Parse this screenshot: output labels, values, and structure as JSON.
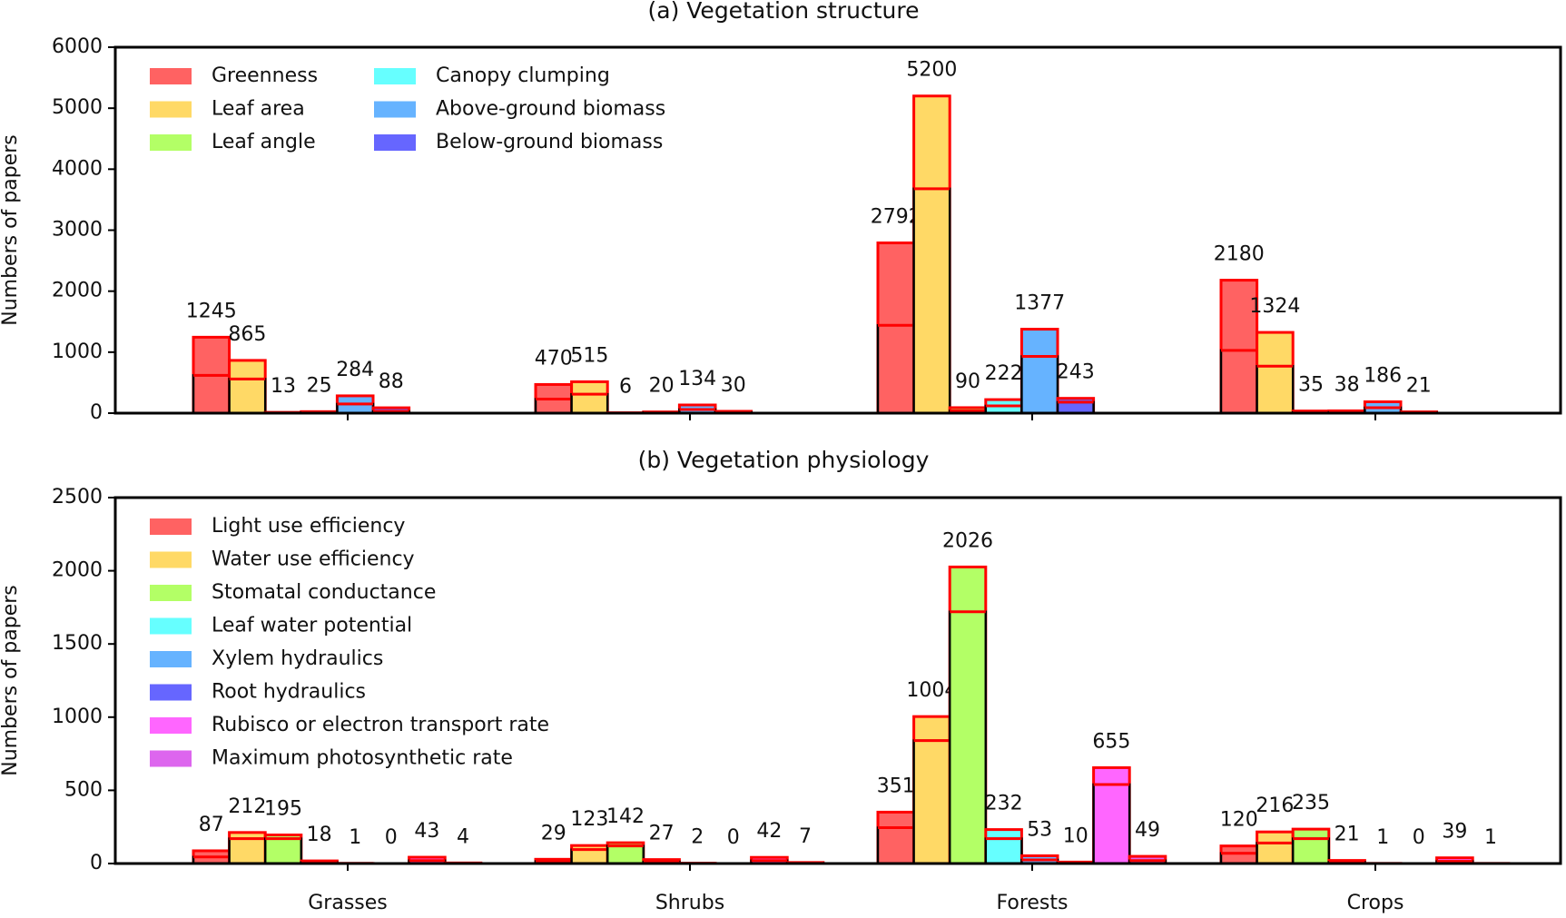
{
  "chart_data": [
    {
      "type": "bar",
      "title": "(a) Vegetation structure",
      "ylabel": "Numbers of papers",
      "ylim": [
        0,
        6000
      ],
      "yticks": [
        0,
        1000,
        2000,
        3000,
        4000,
        5000,
        6000
      ],
      "legend": "upper left",
      "series": [
        {
          "name": "Greenness",
          "color": "#ff6262",
          "values": [
            1245,
            470,
            2792,
            2180
          ],
          "inner_values": [
            620,
            230,
            1440,
            1030
          ]
        },
        {
          "name": "Leaf area",
          "color": "#ffd966",
          "values": [
            865,
            515,
            5200,
            1324
          ],
          "inner_values": [
            560,
            310,
            3680,
            770
          ]
        },
        {
          "name": "Leaf angle",
          "color": "#b3ff66",
          "values": [
            13,
            6,
            90,
            35
          ],
          "inner_values": [
            6,
            3,
            40,
            15
          ]
        },
        {
          "name": "Canopy clumping",
          "color": "#66ffff",
          "values": [
            25,
            20,
            222,
            38
          ],
          "inner_values": [
            10,
            10,
            120,
            15
          ]
        },
        {
          "name": "Above-ground biomass",
          "color": "#66b3ff",
          "values": [
            284,
            134,
            1377,
            186
          ],
          "inner_values": [
            150,
            60,
            930,
            90
          ]
        },
        {
          "name": "Below-ground biomass",
          "color": "#6666ff",
          "values": [
            88,
            30,
            243,
            21
          ],
          "inner_values": [
            30,
            15,
            180,
            10
          ]
        }
      ]
    },
    {
      "type": "bar",
      "title": "(b) Vegetation physiology",
      "ylabel": "Numbers of papers",
      "categories": [
        "Grasses",
        "Shrubs",
        "Forests",
        "Crops"
      ],
      "ylim": [
        0,
        2500
      ],
      "yticks": [
        0,
        500,
        1000,
        1500,
        2000,
        2500
      ],
      "legend": "upper left",
      "series": [
        {
          "name": "Light use efficiency",
          "color": "#ff6262",
          "values": [
            87,
            29,
            351,
            120
          ],
          "inner_values": [
            45,
            15,
            245,
            70
          ]
        },
        {
          "name": "Water use efficiency",
          "color": "#ffd966",
          "values": [
            212,
            123,
            1004,
            216
          ],
          "inner_values": [
            170,
            95,
            840,
            140
          ]
        },
        {
          "name": "Stomatal conductance",
          "color": "#b3ff66",
          "values": [
            195,
            142,
            2026,
            235
          ],
          "inner_values": [
            170,
            120,
            1720,
            170
          ]
        },
        {
          "name": "Leaf water potential",
          "color": "#66ffff",
          "values": [
            18,
            27,
            232,
            21
          ],
          "inner_values": [
            8,
            12,
            170,
            10
          ]
        },
        {
          "name": "Xylem hydraulics",
          "color": "#66b3ff",
          "values": [
            1,
            2,
            53,
            1
          ],
          "inner_values": [
            1,
            1,
            25,
            0
          ]
        },
        {
          "name": "Root hydraulics",
          "color": "#6666ff",
          "values": [
            0,
            0,
            10,
            0
          ],
          "inner_values": [
            0,
            0,
            5,
            0
          ]
        },
        {
          "name": "Rubisco or electron transport rate",
          "color": "#ff66ff",
          "values": [
            43,
            42,
            655,
            39
          ],
          "inner_values": [
            20,
            20,
            540,
            15
          ]
        },
        {
          "name": "Maximum photosynthetic rate",
          "color": "#dd66ee",
          "values": [
            4,
            7,
            49,
            1
          ],
          "inner_values": [
            2,
            3,
            20,
            0
          ]
        }
      ]
    }
  ]
}
